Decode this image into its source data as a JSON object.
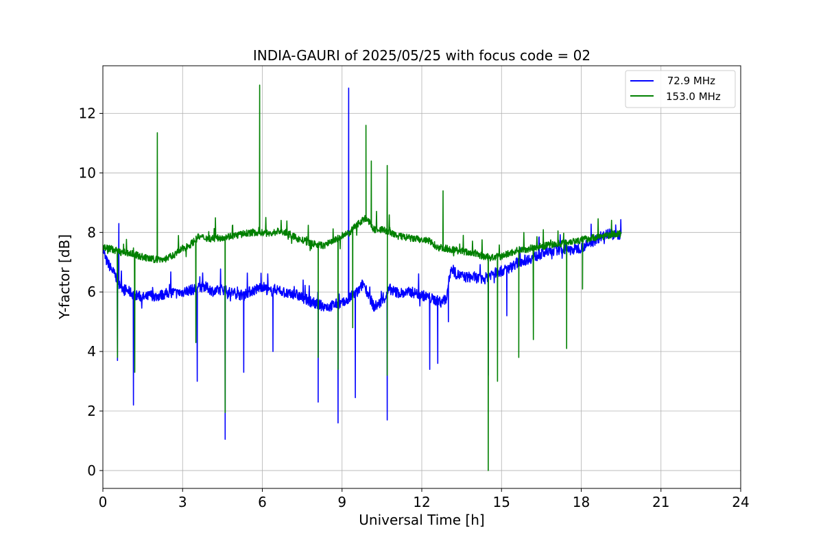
{
  "chart_data": {
    "type": "line",
    "title": "INDIA-GAURI of 2025/05/25 with focus code = 02",
    "xlabel": "Universal Time [h]",
    "ylabel": "Y-factor [dB]",
    "xlim": [
      0,
      24
    ],
    "ylim": [
      -0.6,
      13.6
    ],
    "x_ticks": [
      "0",
      "3",
      "6",
      "9",
      "12",
      "15",
      "18",
      "21",
      "24"
    ],
    "y_ticks": [
      "0",
      "2",
      "4",
      "6",
      "8",
      "10",
      "12"
    ],
    "grid": true,
    "legend_position": "upper right",
    "series": [
      {
        "name": " 72.9 MHz",
        "color": "#0000ff",
        "x": [
          0.0,
          0.1,
          0.3,
          0.5,
          0.6,
          0.8,
          1.0,
          1.2,
          1.4,
          1.6,
          1.8,
          2.0,
          2.2,
          2.4,
          2.6,
          2.8,
          3.0,
          3.2,
          3.5,
          3.8,
          4.0,
          4.2,
          4.5,
          4.7,
          5.0,
          5.2,
          5.5,
          5.8,
          6.0,
          6.3,
          6.5,
          6.8,
          7.0,
          7.2,
          7.5,
          7.8,
          8.0,
          8.2,
          8.5,
          8.8,
          9.0,
          9.2,
          9.4,
          9.6,
          9.8,
          10.0,
          10.2,
          10.4,
          10.6,
          10.8,
          11.0,
          11.3,
          11.6,
          12.0,
          12.3,
          12.6,
          12.9,
          13.1,
          13.3,
          13.6,
          14.0,
          14.3,
          14.6,
          15.0,
          15.3,
          15.6,
          16.0,
          16.3,
          16.6,
          17.0,
          17.3,
          17.6,
          18.0,
          18.3,
          18.6,
          19.0,
          19.3,
          19.5
        ],
        "y": [
          7.5,
          7.1,
          6.8,
          6.5,
          6.3,
          6.1,
          6.0,
          5.9,
          5.85,
          5.8,
          5.9,
          5.85,
          5.9,
          5.95,
          6.0,
          5.95,
          6.0,
          6.05,
          6.1,
          6.2,
          6.1,
          6.0,
          6.1,
          6.0,
          5.95,
          5.9,
          6.0,
          6.1,
          6.2,
          6.0,
          6.1,
          6.0,
          5.9,
          5.95,
          5.8,
          5.7,
          5.6,
          5.55,
          5.5,
          5.6,
          5.6,
          5.7,
          5.9,
          6.0,
          6.3,
          5.9,
          5.5,
          5.6,
          5.8,
          6.1,
          6.0,
          5.95,
          6.0,
          5.9,
          5.8,
          5.7,
          5.7,
          6.8,
          6.6,
          6.5,
          6.5,
          6.4,
          6.6,
          6.7,
          6.8,
          7.0,
          7.1,
          7.2,
          7.3,
          7.4,
          7.45,
          7.4,
          7.5,
          7.6,
          7.8,
          8.0,
          7.9,
          7.95
        ],
        "spikes": [
          [
            0.55,
            3.7
          ],
          [
            0.6,
            8.3
          ],
          [
            1.15,
            2.2
          ],
          [
            3.55,
            3.0
          ],
          [
            4.6,
            1.05
          ],
          [
            5.3,
            3.3
          ],
          [
            6.4,
            4.0
          ],
          [
            8.1,
            2.3
          ],
          [
            8.85,
            1.6
          ],
          [
            9.25,
            12.85
          ],
          [
            9.5,
            2.45
          ],
          [
            10.7,
            1.7
          ],
          [
            12.3,
            3.4
          ],
          [
            12.6,
            3.6
          ],
          [
            13.0,
            5.0
          ],
          [
            14.5,
            3.2
          ],
          [
            15.2,
            5.2
          ]
        ]
      },
      {
        "name": "153.0 MHz",
        "color": "#008000",
        "x": [
          0.0,
          0.3,
          0.6,
          1.0,
          1.4,
          1.8,
          2.0,
          2.3,
          2.6,
          3.0,
          3.3,
          3.6,
          4.0,
          4.3,
          4.6,
          5.0,
          5.3,
          5.6,
          6.0,
          6.3,
          6.6,
          7.0,
          7.3,
          7.6,
          8.0,
          8.3,
          8.6,
          9.0,
          9.3,
          9.6,
          9.9,
          10.2,
          10.5,
          10.8,
          11.0,
          11.3,
          11.6,
          12.0,
          12.3,
          12.6,
          13.0,
          13.3,
          13.6,
          14.0,
          14.3,
          14.6,
          15.0,
          15.3,
          15.6,
          16.0,
          16.3,
          16.6,
          17.0,
          17.3,
          17.6,
          18.0,
          18.3,
          18.6,
          19.0,
          19.3,
          19.5
        ],
        "y": [
          7.5,
          7.45,
          7.35,
          7.3,
          7.2,
          7.1,
          7.1,
          7.1,
          7.2,
          7.45,
          7.6,
          7.85,
          7.8,
          7.8,
          7.85,
          7.9,
          7.95,
          8.0,
          8.0,
          7.95,
          8.05,
          7.95,
          7.8,
          7.7,
          7.6,
          7.55,
          7.7,
          7.85,
          8.0,
          8.3,
          8.5,
          8.1,
          8.1,
          8.0,
          7.9,
          7.85,
          7.8,
          7.75,
          7.7,
          7.5,
          7.45,
          7.4,
          7.35,
          7.3,
          7.2,
          7.15,
          7.2,
          7.3,
          7.4,
          7.45,
          7.5,
          7.55,
          7.6,
          7.65,
          7.7,
          7.75,
          7.8,
          7.85,
          7.9,
          7.95,
          7.95
        ],
        "spikes": [
          [
            0.55,
            3.8
          ],
          [
            1.2,
            3.3
          ],
          [
            2.05,
            11.35
          ],
          [
            3.5,
            4.3
          ],
          [
            4.6,
            1.95
          ],
          [
            5.9,
            12.95
          ],
          [
            8.1,
            3.8
          ],
          [
            8.85,
            3.4
          ],
          [
            9.4,
            4.8
          ],
          [
            9.9,
            11.6
          ],
          [
            10.1,
            10.4
          ],
          [
            10.7,
            10.25
          ],
          [
            10.7,
            3.2
          ],
          [
            12.8,
            9.4
          ],
          [
            14.5,
            0.0
          ],
          [
            14.85,
            3.0
          ],
          [
            15.65,
            3.8
          ],
          [
            16.2,
            4.4
          ],
          [
            17.45,
            4.1
          ],
          [
            18.05,
            6.1
          ]
        ]
      }
    ]
  }
}
